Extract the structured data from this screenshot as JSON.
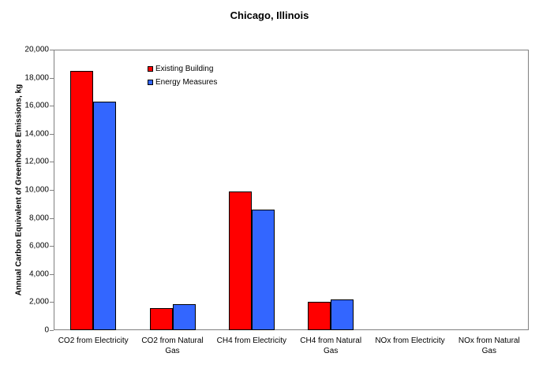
{
  "title": "Chicago, Illinois",
  "y_axis_title": "Annual Carbon Equivalent of Greenhouse Emissions, kg",
  "colors": {
    "existing_building": "#FF0000",
    "energy_measures": "#3366FF",
    "plot_border": "#808080",
    "bar_border": "#000000",
    "text": "#000000"
  },
  "legend": {
    "items": [
      {
        "label": "Existing Building",
        "color": "#FF0000"
      },
      {
        "label": "Energy Measures",
        "color": "#3366FF"
      }
    ]
  },
  "chart_data": {
    "type": "bar",
    "title": "Chicago, Illinois",
    "xlabel": "",
    "ylabel": "Annual Carbon Equivalent of Greenhouse Emissions, kg",
    "ylim": [
      0,
      20000
    ],
    "y_tick_step": 2000,
    "y_tick_labels": [
      "0",
      "2,000",
      "4,000",
      "6,000",
      "8,000",
      "10,000",
      "12,000",
      "14,000",
      "16,000",
      "18,000",
      "20,000"
    ],
    "grid": false,
    "legend_position": "inside-top-left",
    "categories": [
      "CO2 from Electricity",
      "CO2 from Natural Gas",
      "CH4 from Electricity",
      "CH4 from Natural Gas",
      "NOx from Electricity",
      "NOx from Natural Gas"
    ],
    "series": [
      {
        "name": "Existing Building",
        "color": "#FF0000",
        "values": [
          18500,
          1600,
          9900,
          2000,
          0,
          0
        ]
      },
      {
        "name": "Energy Measures",
        "color": "#3366FF",
        "values": [
          16300,
          1850,
          8600,
          2200,
          0,
          0
        ]
      }
    ]
  }
}
